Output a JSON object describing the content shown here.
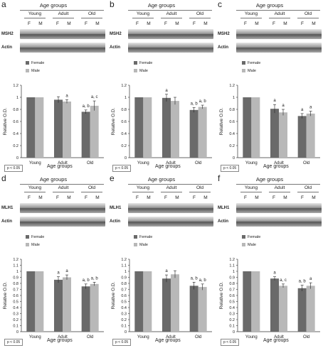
{
  "colors": {
    "female": "#6a6a6a",
    "male": "#b8b8b8",
    "axis": "#333333"
  },
  "common": {
    "age_groups_title": "Age groups",
    "groups": [
      "Young",
      "Adult",
      "Old"
    ],
    "sex": [
      "F",
      "M"
    ],
    "loading_label": "Actin",
    "legend_female": "Female",
    "legend_male": "Male",
    "ylabel": "Relative O.D.",
    "xlabel": "Age groups",
    "pvalue": "p < 0.05"
  },
  "panels": [
    {
      "label": "a",
      "protein": "MSH2"
    },
    {
      "label": "b",
      "protein": "MSH2"
    },
    {
      "label": "c",
      "protein": "MSH2"
    },
    {
      "label": "d",
      "protein": "MLH1"
    },
    {
      "label": "e",
      "protein": "MLH1"
    },
    {
      "label": "f",
      "protein": "MLH1"
    }
  ],
  "chart_data": [
    {
      "panel": "a",
      "type": "bar",
      "categories": [
        "Young",
        "Adult",
        "Old"
      ],
      "ylabel": "Relative O.D.",
      "xlabel": "Age groups",
      "ylim": [
        0,
        1.2
      ],
      "yticks": [
        "0",
        "0.2",
        "0.4",
        "0.6",
        "0.8",
        "1",
        "1.2"
      ],
      "series": [
        {
          "name": "Female",
          "values": [
            1.0,
            0.96,
            0.76
          ],
          "errors": [
            0,
            0.05,
            0.03
          ]
        },
        {
          "name": "Male",
          "values": [
            1.0,
            0.93,
            0.86
          ],
          "errors": [
            0,
            0.03,
            0.08
          ]
        }
      ],
      "annotations": [
        {
          "category": "Adult",
          "series": "Male",
          "text": "a"
        },
        {
          "category": "Old",
          "series": "Female",
          "text": "a, b"
        },
        {
          "category": "Old",
          "series": "Male",
          "text": "a, c"
        }
      ]
    },
    {
      "panel": "b",
      "type": "bar",
      "categories": [
        "Young",
        "Adult",
        "Old"
      ],
      "ylabel": "Relative O.D.",
      "xlabel": "Age groups",
      "ylim": [
        0,
        1.2
      ],
      "yticks": [
        "0",
        "0.2",
        "0.4",
        "0.6",
        "0.8",
        "1",
        "1.2"
      ],
      "series": [
        {
          "name": "Female",
          "values": [
            1.0,
            0.99,
            0.79
          ],
          "errors": [
            0,
            0.06,
            0.04
          ]
        },
        {
          "name": "Male",
          "values": [
            1.0,
            0.94,
            0.84
          ],
          "errors": [
            0,
            0.06,
            0.03
          ]
        }
      ],
      "annotations": [
        {
          "category": "Adult",
          "series": "Female",
          "text": "a"
        },
        {
          "category": "Old",
          "series": "Female",
          "text": "a, b"
        },
        {
          "category": "Old",
          "series": "Male",
          "text": "a, b"
        }
      ]
    },
    {
      "panel": "c",
      "type": "bar",
      "categories": [
        "Young",
        "Adult",
        "Old"
      ],
      "ylabel": "Relative O.D.",
      "xlabel": "Age groups",
      "ylim": [
        0,
        1.2
      ],
      "yticks": [
        "0",
        "0.2",
        "0.4",
        "0.6",
        "0.8",
        "1",
        "1.2"
      ],
      "series": [
        {
          "name": "Female",
          "values": [
            1.0,
            0.81,
            0.69
          ],
          "errors": [
            0,
            0.07,
            0.04
          ]
        },
        {
          "name": "Male",
          "values": [
            1.0,
            0.75,
            0.73
          ],
          "errors": [
            0,
            0.05,
            0.04
          ]
        }
      ],
      "annotations": [
        {
          "category": "Adult",
          "series": "Female",
          "text": "a"
        },
        {
          "category": "Adult",
          "series": "Male",
          "text": "a"
        },
        {
          "category": "Old",
          "series": "Female",
          "text": "a"
        },
        {
          "category": "Old",
          "series": "Male",
          "text": "a"
        }
      ]
    },
    {
      "panel": "d",
      "type": "bar",
      "categories": [
        "Young",
        "Adult",
        "Old"
      ],
      "ylabel": "Relative O.D.",
      "xlabel": "Age groups",
      "ylim": [
        0,
        1.2
      ],
      "yticks": [
        "0",
        "0.1",
        "0.2",
        "0.3",
        "0.4",
        "0.5",
        "0.6",
        "0.7",
        "0.8",
        "0.9",
        "1",
        "1.1",
        "1.2"
      ],
      "series": [
        {
          "name": "Female",
          "values": [
            1.0,
            0.86,
            0.75
          ],
          "errors": [
            0,
            0.05,
            0.04
          ]
        },
        {
          "name": "Male",
          "values": [
            1.0,
            0.9,
            0.79
          ],
          "errors": [
            0,
            0.04,
            0.03
          ]
        }
      ],
      "annotations": [
        {
          "category": "Adult",
          "series": "Female",
          "text": "a"
        },
        {
          "category": "Adult",
          "series": "Male",
          "text": "a"
        },
        {
          "category": "Old",
          "series": "Female",
          "text": "a, b"
        },
        {
          "category": "Old",
          "series": "Male",
          "text": "a, b"
        }
      ]
    },
    {
      "panel": "e",
      "type": "bar",
      "categories": [
        "Young",
        "Adult",
        "Old"
      ],
      "ylabel": "Relative O.D.",
      "xlabel": "Age groups",
      "ylim": [
        0,
        1.2
      ],
      "yticks": [
        "0",
        "0.1",
        "0.2",
        "0.3",
        "0.4",
        "0.5",
        "0.6",
        "0.7",
        "0.8",
        "0.9",
        "1",
        "1.1",
        "1.2"
      ],
      "series": [
        {
          "name": "Female",
          "values": [
            1.0,
            0.88,
            0.76
          ],
          "errors": [
            0,
            0.06,
            0.06
          ]
        },
        {
          "name": "Male",
          "values": [
            1.0,
            0.95,
            0.74
          ],
          "errors": [
            0,
            0.06,
            0.05
          ]
        }
      ],
      "annotations": [
        {
          "category": "Adult",
          "series": "Female",
          "text": "a"
        },
        {
          "category": "Old",
          "series": "Female",
          "text": "a, b"
        },
        {
          "category": "Old",
          "series": "Male",
          "text": "a, b"
        }
      ]
    },
    {
      "panel": "f",
      "type": "bar",
      "categories": [
        "Young",
        "Adult",
        "Old"
      ],
      "ylabel": "Relative O.D.",
      "xlabel": "Age groups",
      "ylim": [
        0,
        1.2
      ],
      "yticks": [
        "0",
        "0.1",
        "0.2",
        "0.3",
        "0.4",
        "0.5",
        "0.6",
        "0.7",
        "0.8",
        "0.9",
        "1",
        "1.1",
        "1.2"
      ],
      "series": [
        {
          "name": "Female",
          "values": [
            1.0,
            0.88,
            0.72
          ],
          "errors": [
            0,
            0.03,
            0.05
          ]
        },
        {
          "name": "Male",
          "values": [
            1.0,
            0.76,
            0.76
          ],
          "errors": [
            0,
            0.03,
            0.05
          ]
        }
      ],
      "annotations": [
        {
          "category": "Adult",
          "series": "Female",
          "text": "a"
        },
        {
          "category": "Adult",
          "series": "Male",
          "text": "a, c"
        },
        {
          "category": "Old",
          "series": "Female",
          "text": "a, b"
        },
        {
          "category": "Old",
          "series": "Male",
          "text": "a"
        }
      ]
    }
  ]
}
